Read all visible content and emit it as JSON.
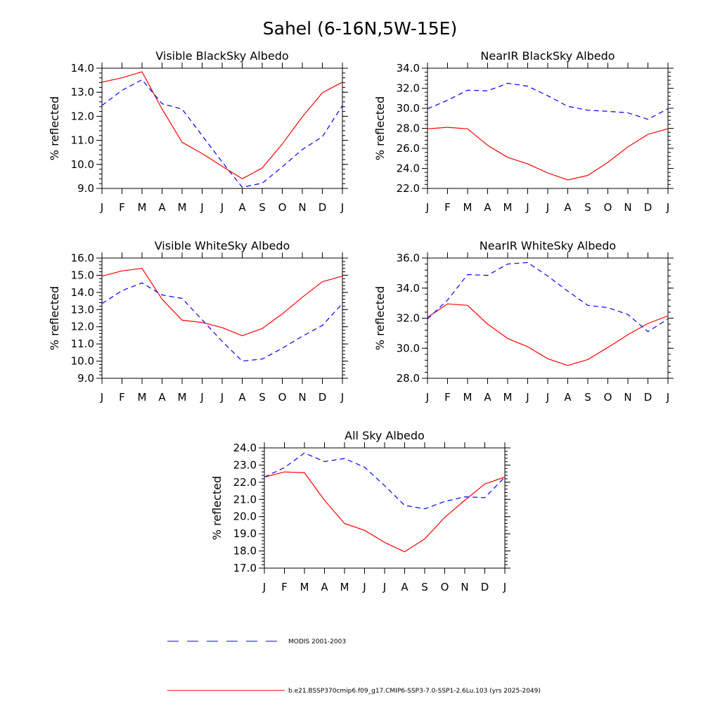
{
  "figure": {
    "title": "Sahel (6-16N,5W-15E)"
  },
  "legend": {
    "items": [
      {
        "label": "MODIS 2001-2003",
        "color": "#0000ff",
        "dashed": true
      },
      {
        "label": "b.e21.BSSP370cmip6.f09_g17.CMIP6-SSP3-7.0-SSP1-2.6Lu.103 (yrs 2025-2049)",
        "color": "#ff0000",
        "dashed": false
      }
    ]
  },
  "chart_data": [
    {
      "type": "line",
      "title": "Visible BlackSky Albedo",
      "ylabel": "% reflected",
      "categories": [
        "J",
        "F",
        "M",
        "A",
        "M",
        "J",
        "J",
        "A",
        "S",
        "O",
        "N",
        "D",
        "J"
      ],
      "ylim": [
        9.0,
        14.0
      ],
      "yticks": [
        "9.0",
        "10.0",
        "11.0",
        "12.0",
        "13.0",
        "14.0"
      ],
      "series": [
        {
          "color": "#ff0000",
          "dashed": false,
          "values": [
            13.42,
            13.6,
            13.85,
            12.3,
            10.92,
            10.45,
            9.92,
            9.4,
            9.85,
            10.85,
            11.98,
            12.98,
            13.42
          ]
        },
        {
          "color": "#0000ff",
          "dashed": true,
          "values": [
            12.45,
            13.08,
            13.52,
            12.52,
            12.3,
            11.2,
            10.1,
            9.05,
            9.22,
            9.9,
            10.62,
            11.15,
            12.45
          ]
        }
      ]
    },
    {
      "type": "line",
      "title": "NearIR BlackSky Albedo",
      "ylabel": "% reflected",
      "categories": [
        "J",
        "F",
        "M",
        "A",
        "M",
        "J",
        "J",
        "A",
        "S",
        "O",
        "N",
        "D",
        "J"
      ],
      "ylim": [
        22.0,
        34.0
      ],
      "yticks": [
        "22.0",
        "24.0",
        "26.0",
        "28.0",
        "30.0",
        "32.0",
        "34.0"
      ],
      "series": [
        {
          "color": "#ff0000",
          "dashed": false,
          "values": [
            27.95,
            28.1,
            27.95,
            26.3,
            25.1,
            24.45,
            23.55,
            22.85,
            23.3,
            24.6,
            26.15,
            27.4,
            27.95
          ]
        },
        {
          "color": "#0000ff",
          "dashed": true,
          "values": [
            29.95,
            30.8,
            31.8,
            31.75,
            32.5,
            32.2,
            31.25,
            30.2,
            29.8,
            29.7,
            29.55,
            28.9,
            29.95
          ]
        }
      ]
    },
    {
      "type": "line",
      "title": "Visible WhiteSky Albedo",
      "ylabel": "% reflected",
      "categories": [
        "J",
        "F",
        "M",
        "A",
        "M",
        "J",
        "J",
        "A",
        "S",
        "O",
        "N",
        "D",
        "J"
      ],
      "ylim": [
        9.0,
        16.0
      ],
      "yticks": [
        "9.0",
        "10.0",
        "11.0",
        "12.0",
        "13.0",
        "14.0",
        "15.0",
        "16.0"
      ],
      "series": [
        {
          "color": "#ff0000",
          "dashed": false,
          "values": [
            14.95,
            15.25,
            15.4,
            13.6,
            12.38,
            12.25,
            11.95,
            11.48,
            11.9,
            12.75,
            13.72,
            14.62,
            14.95
          ]
        },
        {
          "color": "#0000ff",
          "dashed": true,
          "values": [
            13.35,
            14.1,
            14.55,
            13.85,
            13.65,
            12.4,
            11.15,
            10.0,
            10.12,
            10.75,
            11.45,
            12.08,
            13.35
          ]
        }
      ]
    },
    {
      "type": "line",
      "title": "NearIR WhiteSky Albedo",
      "ylabel": "% reflected",
      "categories": [
        "J",
        "F",
        "M",
        "A",
        "M",
        "J",
        "J",
        "A",
        "S",
        "O",
        "N",
        "D",
        "J"
      ],
      "ylim": [
        28.0,
        36.0
      ],
      "yticks": [
        "28.0",
        "30.0",
        "32.0",
        "34.0",
        "36.0"
      ],
      "series": [
        {
          "color": "#ff0000",
          "dashed": false,
          "values": [
            32.05,
            32.95,
            32.85,
            31.6,
            30.65,
            30.1,
            29.3,
            28.85,
            29.25,
            30.05,
            30.9,
            31.65,
            32.15
          ]
        },
        {
          "color": "#0000ff",
          "dashed": true,
          "values": [
            31.95,
            33.2,
            34.9,
            34.85,
            35.6,
            35.7,
            34.8,
            33.8,
            32.85,
            32.7,
            32.25,
            31.1,
            31.95
          ]
        }
      ]
    },
    {
      "type": "line",
      "title": "All Sky Albedo",
      "ylabel": "% reflected",
      "categories": [
        "J",
        "F",
        "M",
        "A",
        "M",
        "J",
        "J",
        "A",
        "S",
        "O",
        "N",
        "D",
        "J"
      ],
      "ylim": [
        17.0,
        24.0
      ],
      "yticks": [
        "17.0",
        "18.0",
        "19.0",
        "20.0",
        "21.0",
        "22.0",
        "23.0",
        "24.0"
      ],
      "series": [
        {
          "color": "#ff0000",
          "dashed": false,
          "values": [
            22.3,
            22.6,
            22.55,
            20.95,
            19.6,
            19.2,
            18.5,
            17.95,
            18.7,
            19.95,
            20.95,
            21.9,
            22.3
          ]
        },
        {
          "color": "#0000ff",
          "dashed": true,
          "values": [
            22.3,
            22.85,
            23.7,
            23.2,
            23.38,
            22.88,
            21.8,
            20.65,
            20.45,
            20.88,
            21.15,
            21.1,
            22.3
          ]
        }
      ]
    }
  ]
}
